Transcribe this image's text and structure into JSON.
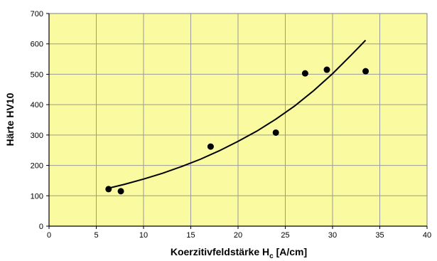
{
  "chart_data": {
    "type": "scatter",
    "title": "",
    "xlabel": {
      "main": "Koerzitivfeldstärke H",
      "sub": "c",
      "tail": " [A/cm]"
    },
    "ylabel": "Härte HV10",
    "xlim": [
      0,
      40
    ],
    "ylim": [
      0,
      700
    ],
    "x_ticks": [
      0,
      5,
      10,
      15,
      20,
      25,
      30,
      35,
      40
    ],
    "y_ticks": [
      0,
      100,
      200,
      300,
      400,
      500,
      600,
      700
    ],
    "grid": true,
    "plot_background": "#fafaa0",
    "grid_color": "#9a9a9a",
    "series": [
      {
        "type": "scatter",
        "x": [
          6.3,
          7.6,
          17.1,
          24.0,
          27.1,
          29.4,
          33.5
        ],
        "y": [
          122,
          115,
          262,
          308,
          503,
          515,
          510
        ]
      },
      {
        "type": "line",
        "x": [
          6.3,
          8,
          10,
          12,
          14,
          16,
          18,
          20,
          22,
          24,
          26,
          28,
          30,
          32,
          33.5
        ],
        "y": [
          125,
          138,
          155,
          174,
          196,
          220,
          248,
          279,
          313,
          352,
          396,
          446,
          502,
          564,
          612
        ]
      }
    ]
  }
}
